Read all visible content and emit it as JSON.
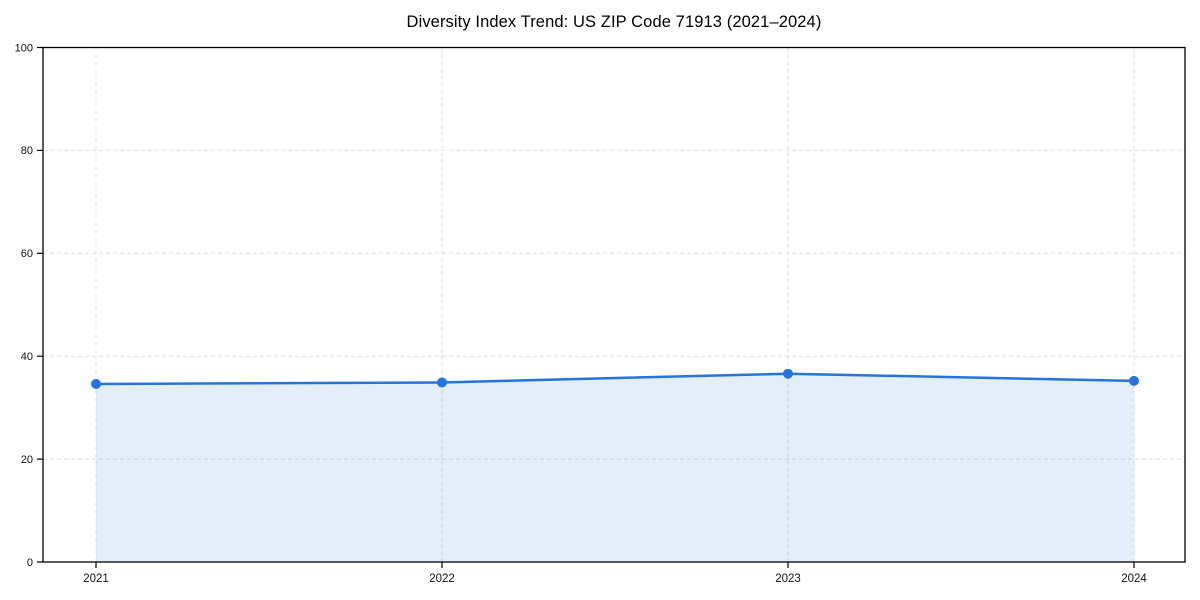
{
  "chart_data": {
    "type": "area",
    "title": "Diversity Index Trend: US ZIP Code 71913 (2021–2024)",
    "x": [
      "2021",
      "2022",
      "2023",
      "2024"
    ],
    "series": [
      {
        "name": "Diversity Index",
        "values": [
          34.6,
          34.9,
          36.6,
          35.2
        ]
      }
    ],
    "xlabel": "",
    "ylabel": "",
    "ylim": [
      0,
      100
    ],
    "yticks": [
      0,
      20,
      40,
      60,
      80,
      100
    ],
    "grid": true,
    "grid_style": "dashed",
    "legend": "none",
    "colors": {
      "line": "#2474dd",
      "marker": "#2474dd",
      "fill": "rgba(36, 116, 221, 0.12)",
      "grid": "#dedede",
      "axis": "#000000",
      "tick_label": "#111111",
      "background": "#ffffff"
    }
  }
}
